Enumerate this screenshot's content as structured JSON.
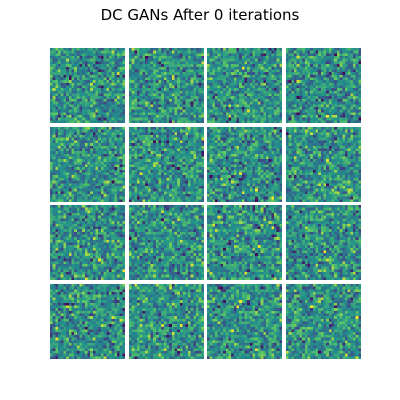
{
  "figure": {
    "title": "DC GANs After 0 iterations",
    "grid_rows": 4,
    "grid_cols": 4,
    "sample_resolution": 28,
    "colormap": "viridis",
    "colormap_stops": [
      "#440154",
      "#3b528b",
      "#21918c",
      "#5ec962",
      "#fde725"
    ],
    "dominant_color": "#21918c",
    "samples": [
      {
        "name": "sample-r1-c1",
        "texture": "random-noise"
      },
      {
        "name": "sample-r1-c2",
        "texture": "random-noise"
      },
      {
        "name": "sample-r1-c3",
        "texture": "random-noise"
      },
      {
        "name": "sample-r1-c4",
        "texture": "random-noise"
      },
      {
        "name": "sample-r2-c1",
        "texture": "random-noise"
      },
      {
        "name": "sample-r2-c2",
        "texture": "random-noise"
      },
      {
        "name": "sample-r2-c3",
        "texture": "random-noise"
      },
      {
        "name": "sample-r2-c4",
        "texture": "random-noise"
      },
      {
        "name": "sample-r3-c1",
        "texture": "random-noise"
      },
      {
        "name": "sample-r3-c2",
        "texture": "random-noise"
      },
      {
        "name": "sample-r3-c3",
        "texture": "random-noise"
      },
      {
        "name": "sample-r3-c4",
        "texture": "random-noise"
      },
      {
        "name": "sample-r4-c1",
        "texture": "random-noise"
      },
      {
        "name": "sample-r4-c2",
        "texture": "random-noise"
      },
      {
        "name": "sample-r4-c3",
        "texture": "random-noise"
      },
      {
        "name": "sample-r4-c4",
        "texture": "random-noise"
      }
    ]
  }
}
